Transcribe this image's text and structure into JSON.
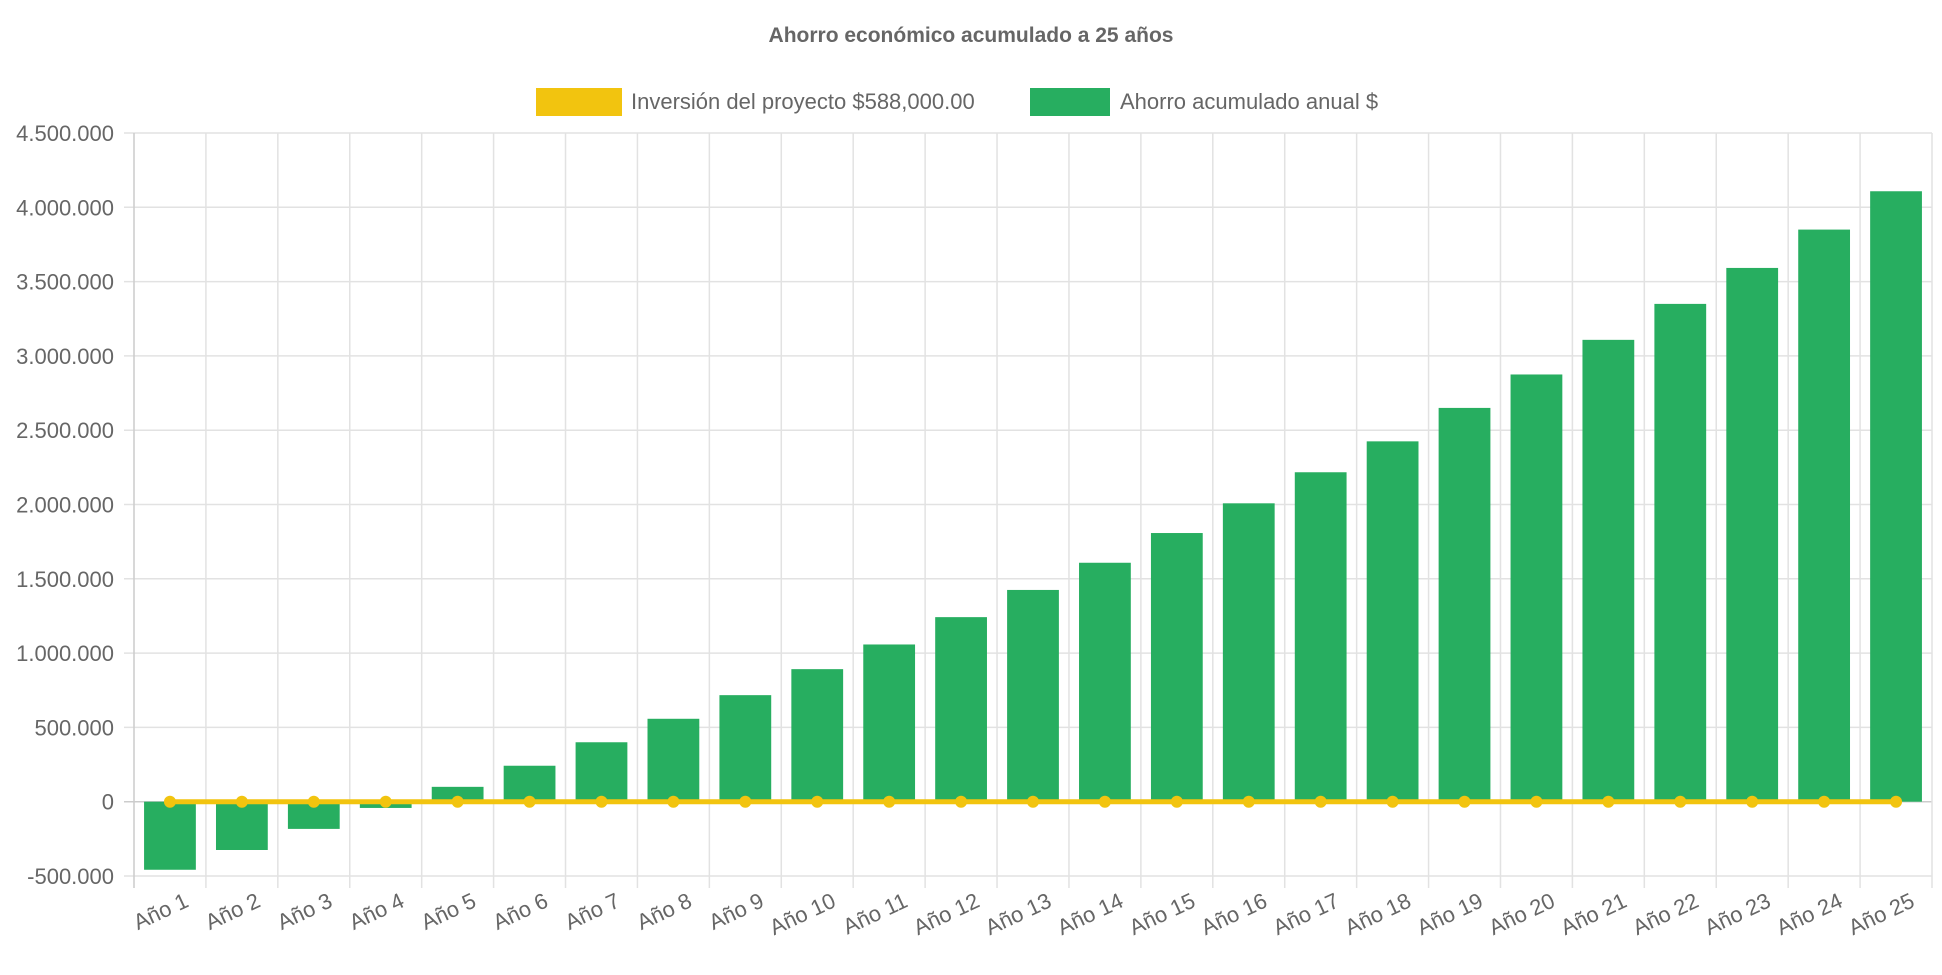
{
  "chart_data": {
    "type": "bar",
    "title": "Ahorro económico acumulado a 25 años",
    "xlabel": "",
    "ylabel": "",
    "ylim": [
      -500000,
      4500000
    ],
    "yticks": [
      "4.500.000",
      "4.000.000",
      "3.500.000",
      "3.000.000",
      "2.500.000",
      "2.000.000",
      "1.500.000",
      "1.000.000",
      "500.000",
      "0",
      "-500.000"
    ],
    "ytick_values": [
      4500000,
      4000000,
      3500000,
      3000000,
      2500000,
      2000000,
      1500000,
      1000000,
      500000,
      0,
      -500000
    ],
    "grid": true,
    "legend_position": "top",
    "categories": [
      "Año 1",
      "Año 2",
      "Año 3",
      "Año 4",
      "Año 5",
      "Año 6",
      "Año 7",
      "Año 8",
      "Año 9",
      "Año 10",
      "Año 11",
      "Año 12",
      "Año 13",
      "Año 14",
      "Año 15",
      "Año 16",
      "Año 17",
      "Año 18",
      "Año 19",
      "Año 20",
      "Año 21",
      "Año 22",
      "Año 23",
      "Año 24",
      "Año 25"
    ],
    "series": [
      {
        "name": "Inversión del proyecto $588,000.00",
        "type": "line",
        "color": "#f2c40f",
        "values": [
          0,
          0,
          0,
          0,
          0,
          0,
          0,
          0,
          0,
          0,
          0,
          0,
          0,
          0,
          0,
          0,
          0,
          0,
          0,
          0,
          0,
          0,
          0,
          0,
          0
        ]
      },
      {
        "name": "Ahorro acumulado anual $",
        "type": "bar",
        "color": "#27ae60",
        "values": [
          -458000,
          -325000,
          -183000,
          -42000,
          100000,
          242000,
          400000,
          558000,
          717000,
          892000,
          1058000,
          1242000,
          1425000,
          1608000,
          1808000,
          2008000,
          2217000,
          2425000,
          2650000,
          2875000,
          3108000,
          3350000,
          3592000,
          3850000,
          4108000
        ]
      }
    ]
  }
}
